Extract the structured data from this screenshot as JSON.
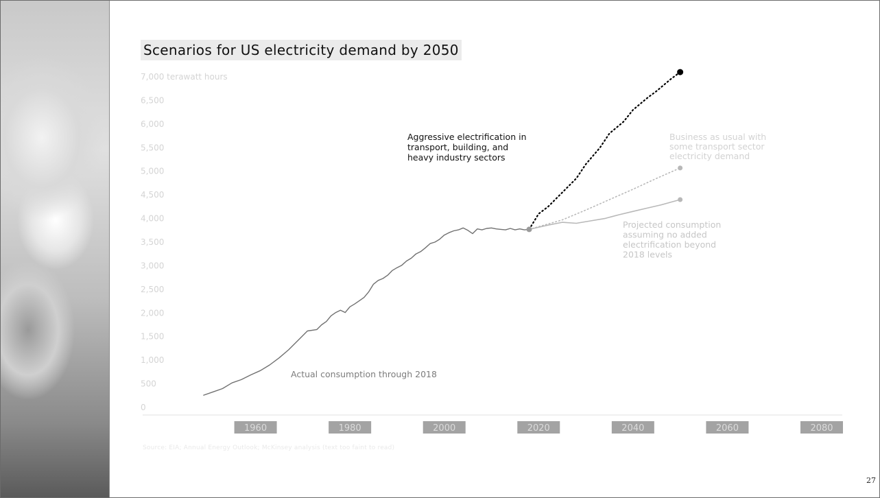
{
  "slide": {
    "title": "Scenarios for US electricity demand by 2050",
    "page_number": "27",
    "footnote": "Source: EIA; Annual Energy Outlook; McKinsey analysis (text too faint to read)"
  },
  "colors": {
    "actual": "#707070",
    "aggressive": "#000000",
    "business_as_usual": "#b8b8b8",
    "projected": "#b8b8b8",
    "axis_text": "#d4d4d4",
    "year_badge_bg": "#a3a3a3",
    "year_badge_text": "#dcdcdc"
  },
  "chart_data": {
    "type": "line",
    "title": "Scenarios for US electricity demand by 2050",
    "ylabel": "terawatt hours",
    "ylim": [
      0,
      7000
    ],
    "xlim": [
      1940,
      2080
    ],
    "y_ticks": [
      "0",
      "500",
      "1,000",
      "1,500",
      "2,000",
      "2,500",
      "3,000",
      "3,500",
      "4,000",
      "4,500",
      "5,000",
      "5,500",
      "6,000",
      "6,500",
      "7,000 terawatt hours"
    ],
    "x_ticks": [
      "1960",
      "1980",
      "2000",
      "2020",
      "2040",
      "2060",
      "2080"
    ],
    "grid": false,
    "series": [
      {
        "key": "actual",
        "style": "solid",
        "x": [
          1949,
          1951,
          1953,
          1955,
          1957,
          1959,
          1961,
          1963,
          1965,
          1967,
          1969,
          1971,
          1973,
          1974,
          1975,
          1976,
          1977,
          1978,
          1979,
          1980,
          1981,
          1982,
          1983,
          1984,
          1985,
          1986,
          1987,
          1988,
          1989,
          1990,
          1991,
          1992,
          1993,
          1994,
          1995,
          1996,
          1997,
          1998,
          1999,
          2000,
          2001,
          2002,
          2003,
          2004,
          2005,
          2006,
          2007,
          2008,
          2009,
          2010,
          2011,
          2012,
          2013,
          2014,
          2015,
          2016,
          2017,
          2018
        ],
        "y": [
          260,
          330,
          400,
          520,
          590,
          690,
          780,
          900,
          1050,
          1220,
          1420,
          1620,
          1650,
          1750,
          1820,
          1940,
          2010,
          2060,
          2010,
          2130,
          2190,
          2260,
          2330,
          2450,
          2610,
          2690,
          2730,
          2800,
          2900,
          2960,
          3010,
          3100,
          3160,
          3250,
          3300,
          3380,
          3470,
          3500,
          3560,
          3650,
          3700,
          3740,
          3760,
          3800,
          3750,
          3680,
          3780,
          3760,
          3790,
          3800,
          3780,
          3770,
          3760,
          3790,
          3760,
          3780,
          3760,
          3770
        ]
      },
      {
        "key": "aggressive",
        "label": "Aggressive electrification in transport, building, and heavy industry sectors",
        "style": "dotted",
        "endpoint_marker": true,
        "x": [
          2018,
          2020,
          2022,
          2025,
          2028,
          2030,
          2033,
          2035,
          2038,
          2040,
          2043,
          2045,
          2048,
          2050
        ],
        "y": [
          3770,
          4100,
          4250,
          4550,
          4850,
          5150,
          5500,
          5800,
          6050,
          6300,
          6550,
          6700,
          6950,
          7100
        ]
      },
      {
        "key": "business_as_usual",
        "label": "Business as usual with some transport sector electricity demand",
        "style": "dotted",
        "endpoint_marker": true,
        "x": [
          2018,
          2025,
          2030,
          2035,
          2040,
          2045,
          2050
        ],
        "y": [
          3770,
          3970,
          4180,
          4400,
          4620,
          4850,
          5070
        ]
      },
      {
        "key": "projected",
        "label": "Projected consumption assuming no added electrification beyond 2018 levels",
        "style": "solid",
        "endpoint_marker": true,
        "x": [
          2018,
          2022,
          2025,
          2028,
          2031,
          2034,
          2037,
          2040,
          2043,
          2046,
          2050
        ],
        "y": [
          3770,
          3860,
          3920,
          3900,
          3950,
          4000,
          4080,
          4150,
          4220,
          4290,
          4400
        ]
      }
    ],
    "start_marker": {
      "x": 2018,
      "y": 3770
    },
    "annotations": [
      {
        "key": "actual",
        "lines": [
          "Actual consumption through 2018"
        ]
      },
      {
        "key": "aggressive",
        "lines": [
          "Aggressive electrification in",
          "transport, building, and",
          "heavy industry sectors"
        ]
      },
      {
        "key": "business_as_usual",
        "lines": [
          "Business as usual with",
          "some transport sector",
          "electricity demand"
        ]
      },
      {
        "key": "projected",
        "lines": [
          "Projected consumption",
          "assuming no added",
          "electrification beyond",
          "2018 levels"
        ]
      }
    ]
  }
}
